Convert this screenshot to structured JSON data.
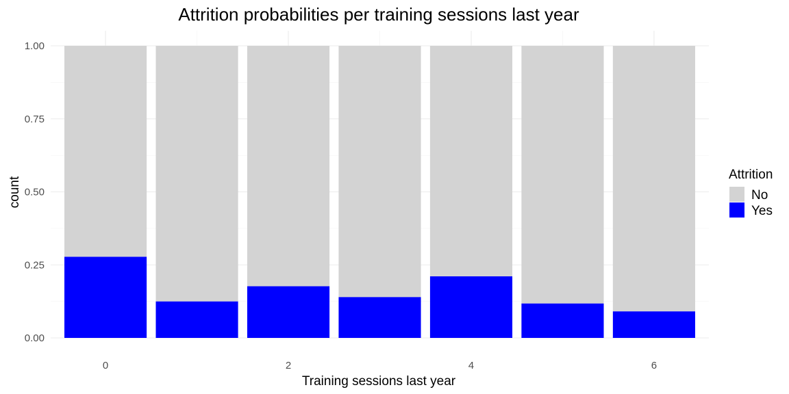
{
  "chart_data": {
    "type": "bar",
    "stacked": true,
    "title": "Attrition probabilities per training sessions last year",
    "xlabel": "Training sessions last year",
    "ylabel": "count",
    "categories": [
      0,
      1,
      2,
      3,
      4,
      5,
      6
    ],
    "x_tick_labels": [
      "0",
      "2",
      "4",
      "6"
    ],
    "y_tick_labels": [
      "0.00",
      "0.25",
      "0.50",
      "0.75",
      "1.00"
    ],
    "ylim": [
      0,
      1
    ],
    "grid": true,
    "series": [
      {
        "name": "Yes",
        "color": "#0000ff",
        "values": [
          0.278,
          0.125,
          0.177,
          0.14,
          0.211,
          0.118,
          0.091
        ]
      },
      {
        "name": "No",
        "color": "#d3d3d3",
        "values": [
          0.722,
          0.875,
          0.823,
          0.86,
          0.789,
          0.882,
          0.909
        ]
      }
    ],
    "legend": {
      "title": "Attrition",
      "position": "right",
      "entries": [
        {
          "label": "No",
          "color": "#d3d3d3"
        },
        {
          "label": "Yes",
          "color": "#0000ff"
        }
      ]
    }
  }
}
